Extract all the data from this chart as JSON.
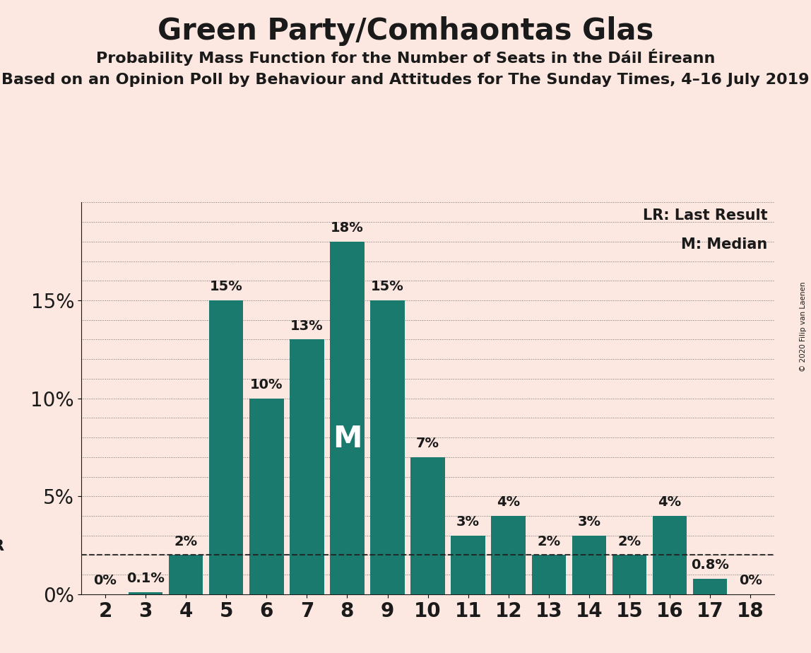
{
  "title": "Green Party/Comhaontas Glas",
  "subtitle1": "Probability Mass Function for the Number of Seats in the Dáil Éireann",
  "subtitle2": "Based on an Opinion Poll by Behaviour and Attitudes for The Sunday Times, 4–16 July 2019",
  "copyright": "© 2020 Filip van Laenen",
  "seats": [
    2,
    3,
    4,
    5,
    6,
    7,
    8,
    9,
    10,
    11,
    12,
    13,
    14,
    15,
    16,
    17,
    18
  ],
  "values": [
    0.0,
    0.1,
    2.0,
    15.0,
    10.0,
    13.0,
    18.0,
    15.0,
    7.0,
    3.0,
    4.0,
    2.0,
    3.0,
    2.0,
    4.0,
    0.8,
    0.0
  ],
  "bar_color": "#1a7a6e",
  "background_color": "#fce8e0",
  "text_color": "#1a1a1a",
  "lr_value": 2.0,
  "lr_label": "LR",
  "median_seat": 8,
  "median_label": "M",
  "legend_lr": "LR: Last Result",
  "legend_m": "M: Median",
  "ylim": [
    0,
    20
  ],
  "title_fontsize": 30,
  "subtitle1_fontsize": 16,
  "subtitle2_fontsize": 16,
  "bar_label_fontsize": 14,
  "axis_tick_fontsize": 20,
  "legend_fontsize": 15,
  "median_fontsize": 30,
  "lr_fontsize": 16
}
